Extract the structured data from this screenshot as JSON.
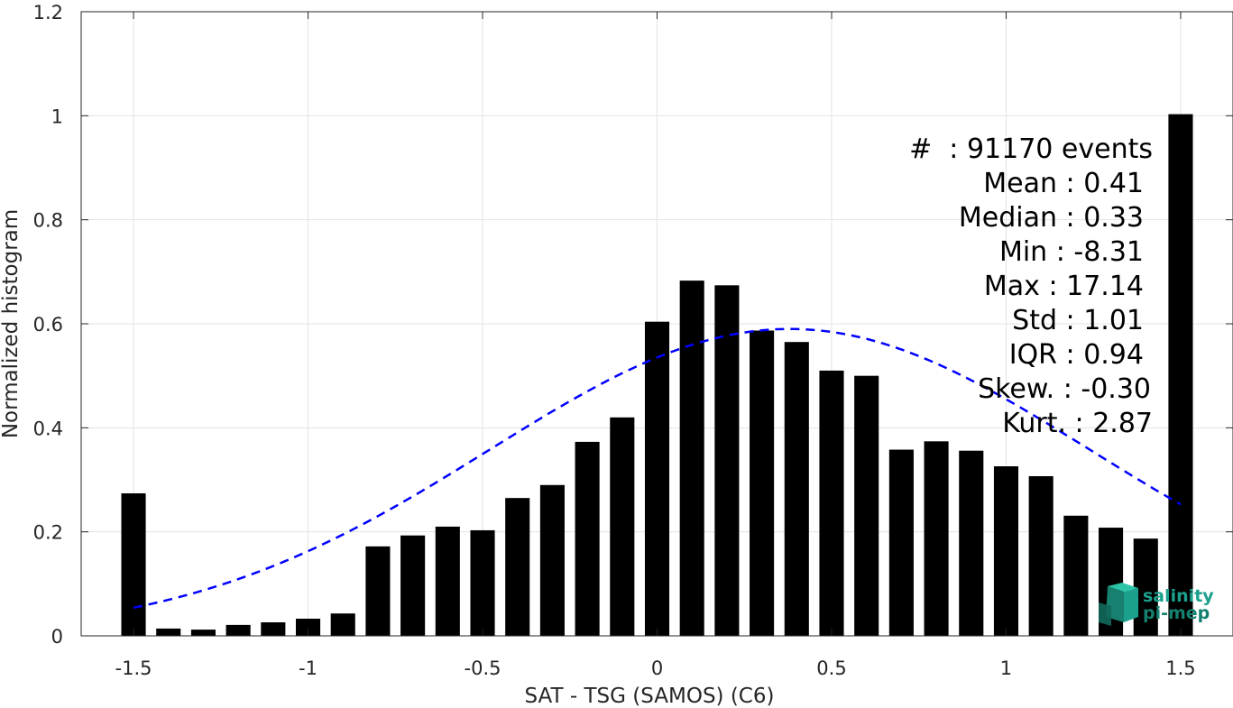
{
  "chart_data": {
    "type": "bar",
    "title": "",
    "xlabel": "SAT - TSG (SAMOS) (C6)",
    "ylabel": "Normalized histogram",
    "xlim": [
      -1.65,
      1.65
    ],
    "ylim": [
      0,
      1.2
    ],
    "grid": true,
    "x_ticks": [
      -1.5,
      -1,
      -0.5,
      0,
      0.5,
      1,
      1.5
    ],
    "x_tick_labels": [
      "-1.5",
      "-1",
      "-0.5",
      "0",
      "0.5",
      "1",
      "1.5"
    ],
    "y_ticks": [
      0,
      0.2,
      0.4,
      0.6,
      0.8,
      1,
      1.2
    ],
    "y_tick_labels": [
      "0",
      "0.2",
      "0.4",
      "0.6",
      "0.8",
      "1",
      "1.2"
    ],
    "bar_width": 0.07,
    "x": [
      -1.5,
      -1.4,
      -1.3,
      -1.2,
      -1.1,
      -1.0,
      -0.9,
      -0.8,
      -0.7,
      -0.6,
      -0.5,
      -0.4,
      -0.3,
      -0.2,
      -0.1,
      0.0,
      0.1,
      0.2,
      0.3,
      0.4,
      0.5,
      0.6,
      0.7,
      0.8,
      0.9,
      1.0,
      1.1,
      1.2,
      1.3,
      1.4,
      1.5
    ],
    "values": [
      0.274,
      0.014,
      0.012,
      0.021,
      0.026,
      0.033,
      0.043,
      0.172,
      0.193,
      0.21,
      0.203,
      0.265,
      0.29,
      0.373,
      0.42,
      0.604,
      0.683,
      0.674,
      0.587,
      0.565,
      0.51,
      0.5,
      0.358,
      0.374,
      0.356,
      0.326,
      0.307,
      0.231,
      0.208,
      0.187,
      1.003
    ],
    "fit_curve": {
      "type": "gaussian",
      "style": "dashed",
      "color": "#0000ff",
      "mean": 0.38,
      "std": 0.86,
      "peak": 0.59,
      "x_range": [
        -1.5,
        1.5
      ]
    },
    "bar_color": "#000000"
  },
  "stats": [
    {
      "label": "#  : 91170 events"
    },
    {
      "label": "Mean : 0.41"
    },
    {
      "label": "Median : 0.33"
    },
    {
      "label": "Min : -8.31"
    },
    {
      "label": "Max : 17.14"
    },
    {
      "label": "Std : 1.01"
    },
    {
      "label": "IQR : 0.94"
    },
    {
      "label": "Skew. : -0.30"
    },
    {
      "label": "Kurt. : 2.87"
    }
  ],
  "logo": {
    "line1": "salinity",
    "line2": "pi-mep",
    "color": "#1aa08c"
  }
}
